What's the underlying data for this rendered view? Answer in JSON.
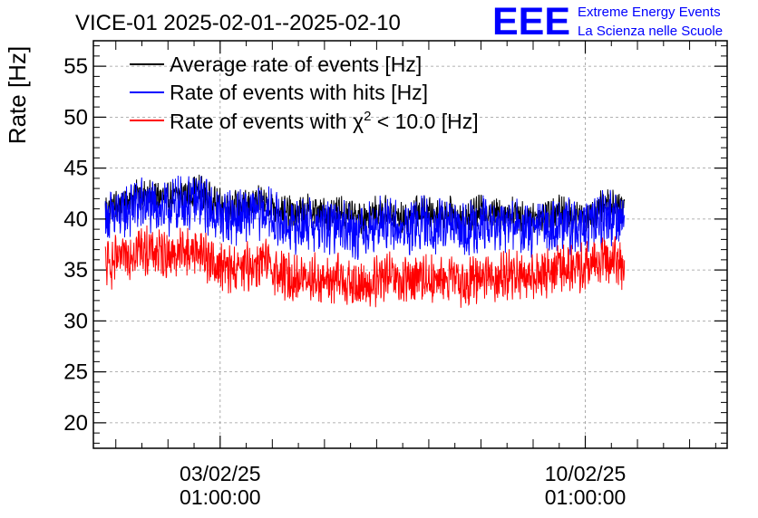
{
  "header": {
    "title": "VICE-01 2025-02-01--2025-02-10",
    "logo_text": "EEE",
    "logo_line1": "Extreme Energy Events",
    "logo_line2": "La Scienza nelle Scuole",
    "logo_color": "#0000ff"
  },
  "chart_data": {
    "type": "line",
    "title": "VICE-01 2025-02-01--2025-02-10",
    "ylabel": "Rate [Hz]",
    "xlabel": "",
    "ylim": [
      17.5,
      57.5
    ],
    "yticks": [
      20,
      25,
      30,
      35,
      40,
      45,
      50,
      55
    ],
    "y_tick_labels": [
      "20",
      "25",
      "30",
      "35",
      "40",
      "45",
      "50",
      "55"
    ],
    "grid": true,
    "legend_position": "top-left",
    "xlim_days": [
      -2.43,
      9.72
    ],
    "x_ticks": [
      {
        "day": 0,
        "date": "03/02/25",
        "time": "01:00:00"
      },
      {
        "day": 7,
        "date": "10/02/25",
        "time": "01:00:00"
      }
    ],
    "data_range_days": [
      -2.2,
      7.75
    ],
    "series": [
      {
        "name": "Average rate of events [Hz]",
        "color": "#000000",
        "noise": 1.3,
        "x": [
          -2.2,
          -1.9,
          -1.6,
          -1.3,
          -1.0,
          -0.7,
          -0.4,
          -0.1,
          0.2,
          0.5,
          0.8,
          1.1,
          1.4,
          1.7,
          2.0,
          2.3,
          2.6,
          2.9,
          3.2,
          3.5,
          3.8,
          4.1,
          4.4,
          4.7,
          5.0,
          5.3,
          5.6,
          5.9,
          6.2,
          6.5,
          6.8,
          7.1,
          7.4,
          7.75
        ],
        "values": [
          41.0,
          41.5,
          42.5,
          42.2,
          42.0,
          42.5,
          42.8,
          41.5,
          41.2,
          41.3,
          41.8,
          41.0,
          40.5,
          40.8,
          40.5,
          40.8,
          40.0,
          40.5,
          40.7,
          40.0,
          40.8,
          40.5,
          40.6,
          40.0,
          40.9,
          40.5,
          40.7,
          40.0,
          40.5,
          40.8,
          40.2,
          40.6,
          41.5,
          41.2
        ]
      },
      {
        "name": "Rate of events with hits [Hz]",
        "color": "#0000ff",
        "noise": 2.2,
        "x": [
          -2.2,
          -1.9,
          -1.6,
          -1.3,
          -1.0,
          -0.7,
          -0.4,
          -0.1,
          0.2,
          0.5,
          0.8,
          1.1,
          1.4,
          1.7,
          2.0,
          2.3,
          2.6,
          2.9,
          3.2,
          3.5,
          3.8,
          4.1,
          4.4,
          4.7,
          5.0,
          5.3,
          5.6,
          5.9,
          6.2,
          6.5,
          6.8,
          7.1,
          7.4,
          7.75
        ],
        "values": [
          40.0,
          40.5,
          41.5,
          41.2,
          41.0,
          41.5,
          41.8,
          40.5,
          40.2,
          40.3,
          40.8,
          39.8,
          39.2,
          39.6,
          39.2,
          39.6,
          38.8,
          39.3,
          39.5,
          38.8,
          39.6,
          39.3,
          39.4,
          38.8,
          39.7,
          39.3,
          39.5,
          38.8,
          39.3,
          39.6,
          39.0,
          39.4,
          40.3,
          40.0
        ]
      },
      {
        "name": "Rate of events with χ² < 10.0 [Hz]",
        "color": "#ff0000",
        "noise": 2.0,
        "x": [
          -2.2,
          -1.9,
          -1.6,
          -1.3,
          -1.0,
          -0.7,
          -0.4,
          -0.1,
          0.2,
          0.5,
          0.8,
          1.1,
          1.4,
          1.7,
          2.0,
          2.3,
          2.6,
          2.9,
          3.2,
          3.5,
          3.8,
          4.1,
          4.4,
          4.7,
          5.0,
          5.3,
          5.6,
          5.9,
          6.2,
          6.5,
          6.8,
          7.1,
          7.4,
          7.75
        ],
        "values": [
          35.5,
          36.0,
          37.2,
          36.8,
          36.5,
          36.8,
          37.0,
          35.5,
          35.0,
          35.2,
          35.8,
          34.8,
          34.0,
          34.4,
          33.8,
          34.2,
          33.2,
          33.6,
          34.4,
          33.5,
          34.5,
          34.0,
          34.2,
          33.5,
          34.6,
          34.2,
          34.5,
          34.0,
          34.8,
          35.2,
          35.0,
          35.5,
          36.0,
          35.5
        ]
      }
    ]
  }
}
